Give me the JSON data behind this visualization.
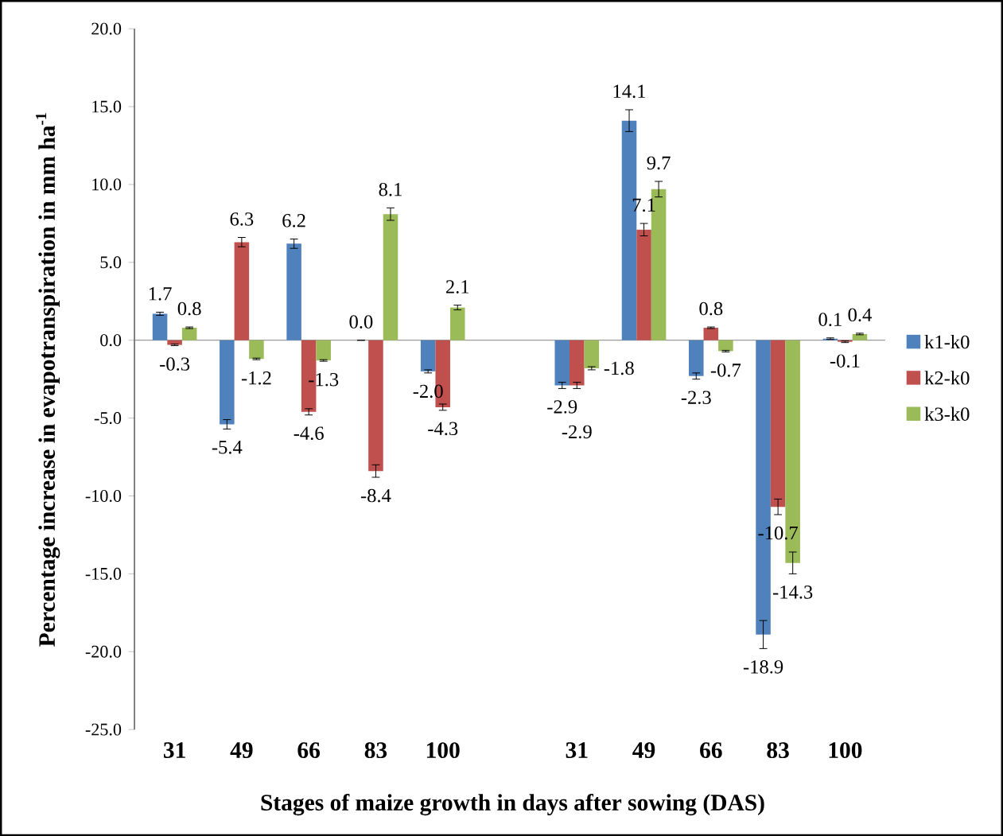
{
  "chart_data": {
    "type": "bar",
    "xlabel": "Stages of maize growth in days after sowing (DAS)",
    "ylabel": "Percentage increase in evapotranspiration in mm ha$^{-1}$",
    "categories": [
      "31",
      "49",
      "66",
      "83",
      "100",
      null,
      "31",
      "49",
      "66",
      "83",
      "100"
    ],
    "series": [
      {
        "name": "k1-k0",
        "color": "#4f81bd",
        "values": [
          1.7,
          -5.4,
          6.2,
          0.0,
          -2.0,
          null,
          -2.9,
          14.1,
          -2.3,
          -18.9,
          0.1
        ],
        "value_labels": [
          "1.7",
          "-5.4",
          "6.2",
          "0.0",
          "-2.0",
          null,
          "-2.9",
          "14.1",
          "-2.3",
          "-18.9",
          "0.1"
        ],
        "errors": [
          0.1,
          0.3,
          0.3,
          null,
          0.1,
          null,
          0.2,
          0.7,
          0.2,
          0.9,
          0.05
        ]
      },
      {
        "name": "k2-k0",
        "color": "#c0504d",
        "values": [
          -0.3,
          6.3,
          -4.6,
          -8.4,
          -4.3,
          null,
          -2.9,
          7.1,
          0.8,
          -10.7,
          -0.1
        ],
        "value_labels": [
          "-0.3",
          "6.3",
          "-4.6",
          "-8.4",
          "-4.3",
          null,
          "-2.9",
          "7.1",
          "0.8",
          "-10.7",
          "-0.1"
        ],
        "errors": [
          0.05,
          0.3,
          0.2,
          0.4,
          0.2,
          null,
          0.2,
          0.4,
          0.05,
          0.5,
          0.05
        ]
      },
      {
        "name": "k3-k0",
        "color": "#9bbb59",
        "values": [
          0.8,
          -1.2,
          -1.3,
          8.1,
          2.1,
          null,
          -1.8,
          9.7,
          -0.7,
          -14.3,
          0.4
        ],
        "value_labels": [
          "0.8",
          "-1.2",
          "-1.3",
          "8.1",
          "2.1",
          null,
          "-1.8",
          "9.7",
          "-0.7",
          "-14.3",
          "0.4"
        ],
        "errors": [
          0.05,
          0.05,
          0.05,
          0.4,
          0.15,
          null,
          0.1,
          0.5,
          0.05,
          0.7,
          0.05
        ]
      }
    ],
    "ylim": [
      -25,
      20
    ],
    "yticks": [
      {
        "value": -25,
        "label": "-25.0"
      },
      {
        "value": -20,
        "label": "-20.0"
      },
      {
        "value": -15,
        "label": "-15.0"
      },
      {
        "value": -10,
        "label": "-10.0"
      },
      {
        "value": -5,
        "label": "-5.0"
      },
      {
        "value": 0,
        "label": "0.0"
      },
      {
        "value": 5,
        "label": "5.0"
      },
      {
        "value": 10,
        "label": "10.0"
      },
      {
        "value": 15,
        "label": "15.0"
      },
      {
        "value": 20,
        "label": "20.0"
      }
    ],
    "legend": "right"
  }
}
